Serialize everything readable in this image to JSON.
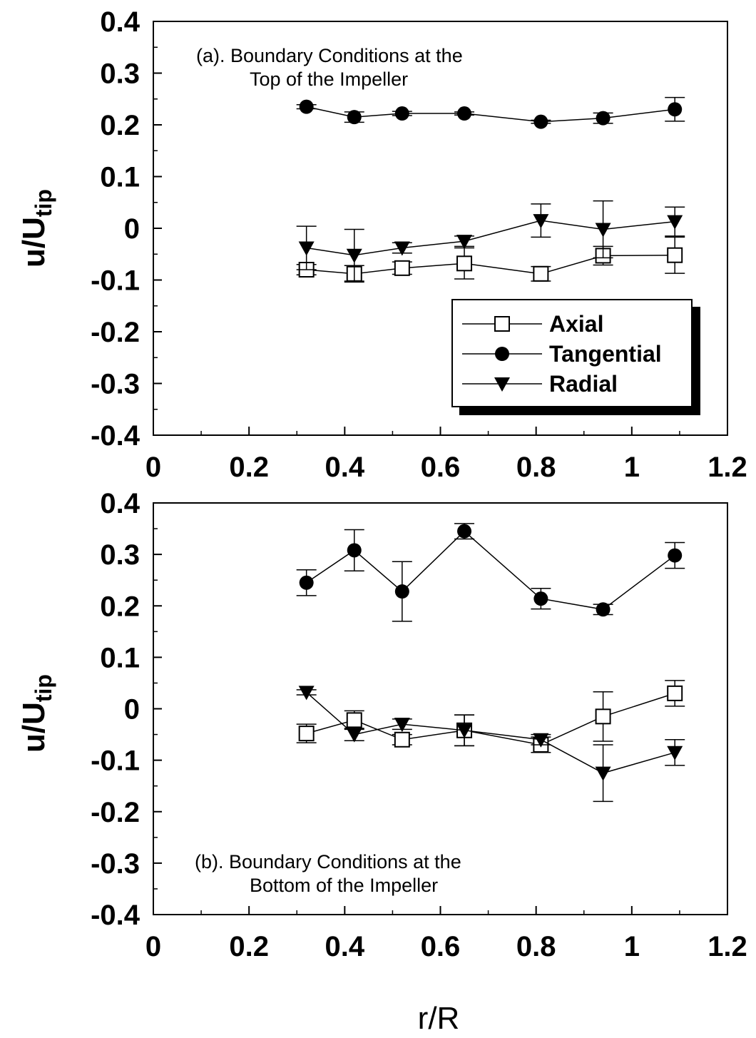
{
  "chart_data": [
    {
      "type": "line",
      "panel": "a",
      "annotation_lines": [
        "(a).  Boundary Conditions at the",
        "Top of the Impeller"
      ],
      "ylabel_main": "u/U",
      "ylabel_sub": "tip",
      "xlim": [
        0,
        1.2
      ],
      "ylim": [
        -0.4,
        0.4
      ],
      "xticks": [
        "0",
        "0.2",
        "0.4",
        "0.6",
        "0.8",
        "1",
        "1.2"
      ],
      "yticks": [
        "0.4",
        "0.3",
        "0.2",
        "0.1",
        "0",
        "-0.1",
        "-0.2",
        "-0.3",
        "-0.4"
      ],
      "legend_position": "lower-right",
      "x": [
        0.32,
        0.42,
        0.52,
        0.65,
        0.81,
        0.94,
        1.09
      ],
      "series": [
        {
          "name": "Axial",
          "marker": "open-square",
          "values": [
            -0.08,
            -0.088,
            -0.077,
            -0.068,
            -0.088,
            -0.053,
            -0.052
          ],
          "errors": [
            0.01,
            0.016,
            0.012,
            0.03,
            0.014,
            0.018,
            0.035
          ]
        },
        {
          "name": "Tangential",
          "marker": "filled-circle",
          "values": [
            0.235,
            0.215,
            0.222,
            0.222,
            0.206,
            0.213,
            0.23
          ],
          "errors": [
            0.004,
            0.01,
            0.004,
            0.003,
            0.003,
            0.01,
            0.023
          ]
        },
        {
          "name": "Radial",
          "marker": "filled-down-triangle",
          "values": [
            -0.038,
            -0.052,
            -0.038,
            -0.025,
            0.015,
            -0.002,
            0.013
          ],
          "errors": [
            0.042,
            0.05,
            0.01,
            0.01,
            0.032,
            0.055,
            0.028
          ]
        }
      ]
    },
    {
      "type": "line",
      "panel": "b",
      "annotation_lines": [
        "(b).  Boundary Conditions at the",
        "Bottom of the Impeller"
      ],
      "ylabel_main": "u/U",
      "ylabel_sub": "tip",
      "xlabel": "r/R",
      "xlim": [
        0,
        1.2
      ],
      "ylim": [
        -0.4,
        0.4
      ],
      "xticks": [
        "0",
        "0.2",
        "0.4",
        "0.6",
        "0.8",
        "1",
        "1.2"
      ],
      "yticks": [
        "0.4",
        "0.3",
        "0.2",
        "0.1",
        "0",
        "-0.1",
        "-0.2",
        "-0.3",
        "-0.4"
      ],
      "x": [
        0.32,
        0.42,
        0.52,
        0.65,
        0.81,
        0.94,
        1.09
      ],
      "series": [
        {
          "name": "Axial",
          "marker": "open-square",
          "values": [
            -0.048,
            -0.022,
            -0.06,
            -0.042,
            -0.07,
            -0.015,
            0.03
          ],
          "errors": [
            0.018,
            0.018,
            0.01,
            0.03,
            0.015,
            0.048,
            0.025
          ]
        },
        {
          "name": "Tangential",
          "marker": "filled-circle",
          "values": [
            0.245,
            0.308,
            0.228,
            0.345,
            0.214,
            0.193,
            0.298
          ],
          "errors": [
            0.025,
            0.04,
            0.058,
            0.015,
            0.02,
            0.01,
            0.025
          ]
        },
        {
          "name": "Radial",
          "marker": "filled-down-triangle",
          "values": [
            0.032,
            -0.05,
            -0.03,
            -0.042,
            -0.06,
            -0.125,
            -0.085
          ],
          "errors": [
            0.005,
            0.012,
            0.01,
            0.03,
            0.01,
            0.055,
            0.025
          ]
        }
      ]
    }
  ]
}
